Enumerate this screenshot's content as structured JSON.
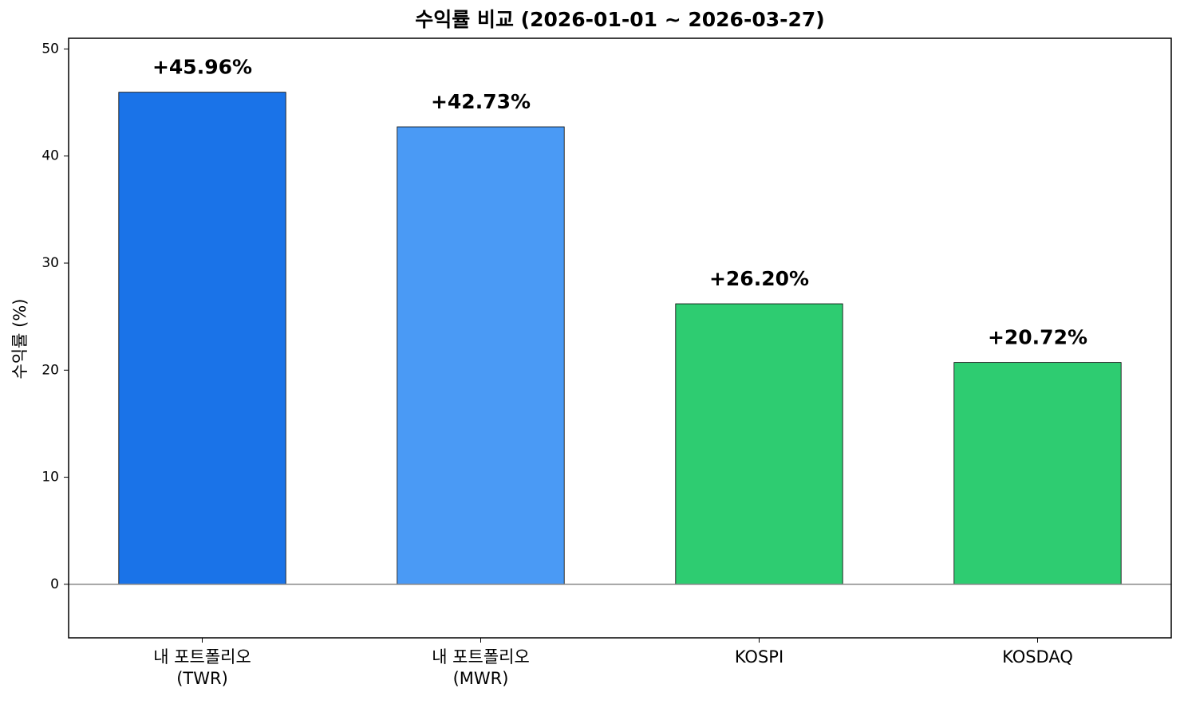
{
  "chart_data": {
    "type": "bar",
    "title": "수익률 비교 (2026-01-01 ~ 2026-03-27)",
    "y_label": "수익률 (%)",
    "categories": [
      "내 포트폴리오\n(TWR)",
      "내 포트폴리오\n(MWR)",
      "KOSPI",
      "KOSDAQ"
    ],
    "values": [
      45.96,
      42.73,
      26.2,
      20.72
    ],
    "value_labels": [
      "+45.96%",
      "+42.73%",
      "+26.20%",
      "+20.72%"
    ],
    "colors": [
      "#1a73e8",
      "#4a9af5",
      "#2ecc71",
      "#2ecc71"
    ],
    "ylim": [
      -5,
      51
    ],
    "yticks": [
      0,
      10,
      20,
      30,
      40,
      50
    ],
    "grid": false
  }
}
